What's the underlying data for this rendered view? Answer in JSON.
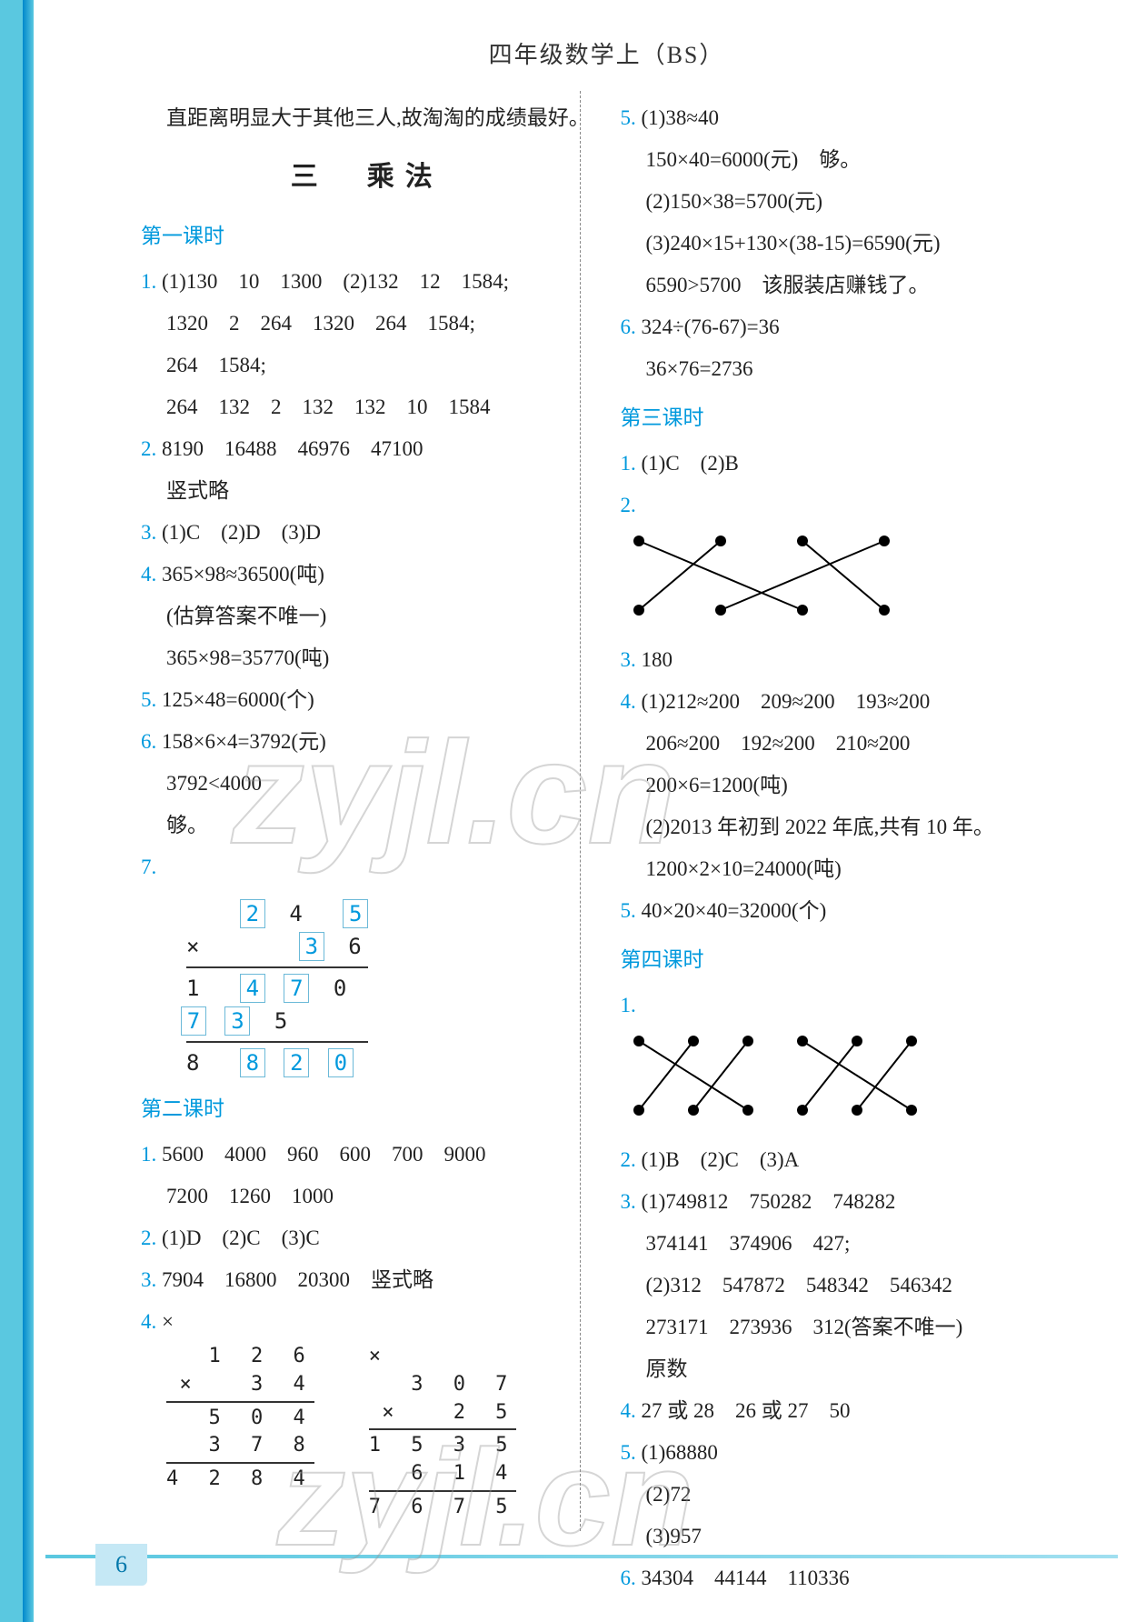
{
  "header": "四年级数学上（BS）",
  "page_number": "6",
  "watermark": "zyjl.cn",
  "left_col": {
    "intro": "直距离明显大于其他三人,故淘淘的成绩最好。",
    "section_title": "三　乘法",
    "lesson1": {
      "title": "第一课时",
      "q1a": "(1)130　10　1300　(2)132　12　1584;",
      "q1b": "1320　2　264　1320　264　1584;",
      "q1c": "264　1584;",
      "q1d": "264　132　2　132　132　10　1584",
      "q2a": "8190　16488　46976　47100",
      "q2b": "竖式略",
      "q3": "(1)C　(2)D　(3)D",
      "q4a": "365×98≈36500(吨)",
      "q4b": "(估算答案不唯一)",
      "q4c": "365×98=35770(吨)",
      "q5": "125×48=6000(个)",
      "q6a": "158×6×4=3792(元)",
      "q6b": "3792<4000",
      "q6c": "够。",
      "q7_grid": {
        "r1": [
          "",
          "2",
          "4",
          "5"
        ],
        "r2": [
          "×",
          "",
          "3",
          "6"
        ],
        "r3": [
          "1",
          "4",
          "7",
          "0"
        ],
        "r4": [
          "7",
          "3",
          "5",
          ""
        ],
        "r5": [
          "8",
          "8",
          "2",
          "0"
        ],
        "boxed": {
          "r1": [
            1,
            3
          ],
          "r2": [
            2
          ],
          "r3": [
            1,
            2
          ],
          "r4": [
            0,
            1
          ],
          "r5": [
            1,
            2,
            3
          ]
        }
      }
    },
    "lesson2": {
      "title": "第二课时",
      "q1a": "5600　4000　960　600　700　9000",
      "q1b": "7200　1260　1000",
      "q2": "(1)D　(2)C　(3)C",
      "q3": "7904　16800　20300　竖式略",
      "q4_left": {
        "top": "1 2 6",
        "mul": "× 　3 4",
        "p1": "5 0 4",
        "p2": "3 7 8　",
        "res": "4 2 8 4",
        "mark": "×"
      },
      "q4_right": {
        "top": "3 0 7",
        "mul": "× 　2 5",
        "p1": "1 5 3 5",
        "p2": "6 1 4　",
        "res": "7 6 7 5",
        "mark": "×"
      }
    }
  },
  "right_col": {
    "q5a": "(1)38≈40",
    "q5b": "150×40=6000(元)　够。",
    "q5c": "(2)150×38=5700(元)",
    "q5d": "(3)240×15+130×(38-15)=6590(元)",
    "q5e": "6590>5700　该服装店赚钱了。",
    "q6a": "324÷(76-67)=36",
    "q6b": "36×76=2736",
    "lesson3": {
      "title": "第三课时",
      "q1": "(1)C　(2)B",
      "q2_match": {
        "top_x": [
          20,
          110,
          200,
          290
        ],
        "bot_x": [
          20,
          110,
          200,
          290
        ],
        "edges": [
          [
            0,
            2
          ],
          [
            1,
            0
          ],
          [
            2,
            3
          ],
          [
            3,
            1
          ]
        ]
      },
      "q3": "180",
      "q4a": "(1)212≈200　209≈200　193≈200",
      "q4b": "206≈200　192≈200　210≈200",
      "q4c": "200×6=1200(吨)",
      "q4d": "(2)2013 年初到 2022 年底,共有 10 年。",
      "q4e": "1200×2×10=24000(吨)",
      "q5": "40×20×40=32000(个)"
    },
    "lesson4": {
      "title": "第四课时",
      "q1_match": {
        "top_x": [
          20,
          80,
          140,
          200,
          260,
          320
        ],
        "bot_x": [
          20,
          80,
          140,
          200,
          260,
          320
        ],
        "edges": [
          [
            0,
            2
          ],
          [
            1,
            0
          ],
          [
            2,
            1
          ],
          [
            3,
            5
          ],
          [
            4,
            3
          ],
          [
            5,
            4
          ]
        ]
      },
      "q2": "(1)B　(2)C　(3)A",
      "q3a": "(1)749812　750282　748282",
      "q3b": "374141　374906　427;",
      "q3c": "(2)312　547872　548342　546342",
      "q3d": "273171　273936　312(答案不唯一)",
      "q3e": "原数",
      "q4": "27 或 28　26 或 27　50",
      "q5a": "(1)68880",
      "q5b": "(2)72",
      "q5c": "(3)957",
      "q6": "34304　44144　110336"
    }
  }
}
